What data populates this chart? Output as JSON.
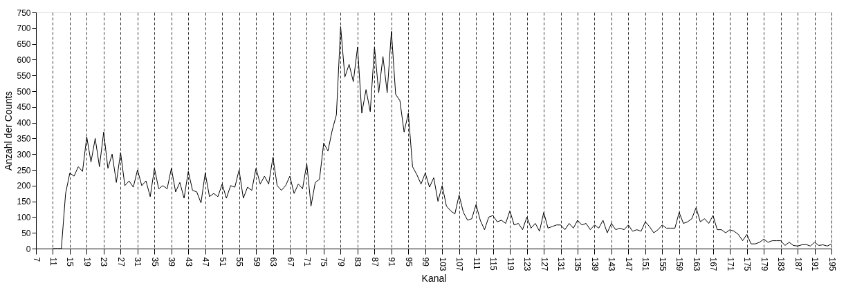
{
  "chart_data": {
    "type": "line",
    "xlabel": "Kanal",
    "ylabel": "Anzahl der Counts",
    "color": "#000000",
    "grid": "x",
    "xlim": [
      7,
      195
    ],
    "xticks": [
      7,
      11,
      15,
      19,
      23,
      27,
      31,
      35,
      39,
      43,
      47,
      51,
      55,
      59,
      63,
      67,
      71,
      75,
      79,
      83,
      87,
      91,
      95,
      99,
      103,
      107,
      111,
      115,
      119,
      123,
      127,
      131,
      135,
      139,
      143,
      147,
      151,
      155,
      159,
      163,
      167,
      171,
      175,
      179,
      183,
      187,
      191,
      195
    ],
    "ylim": [
      0,
      750
    ],
    "yticks": [
      0,
      50,
      100,
      150,
      200,
      250,
      300,
      350,
      400,
      450,
      500,
      550,
      600,
      650,
      700,
      750
    ],
    "x": [
      11,
      12,
      13,
      14,
      15,
      16,
      17,
      18,
      19,
      20,
      21,
      22,
      23,
      24,
      25,
      26,
      27,
      28,
      29,
      30,
      31,
      32,
      33,
      34,
      35,
      36,
      37,
      38,
      39,
      40,
      41,
      42,
      43,
      44,
      45,
      46,
      47,
      48,
      49,
      50,
      51,
      52,
      53,
      54,
      55,
      56,
      57,
      58,
      59,
      60,
      61,
      62,
      63,
      64,
      65,
      66,
      67,
      68,
      69,
      70,
      71,
      72,
      73,
      74,
      75,
      76,
      77,
      78,
      79,
      80,
      81,
      82,
      83,
      84,
      85,
      86,
      87,
      88,
      89,
      90,
      91,
      92,
      93,
      94,
      95,
      96,
      97,
      98,
      99,
      100,
      101,
      102,
      103,
      104,
      105,
      106,
      107,
      108,
      109,
      110,
      111,
      112,
      113,
      114,
      115,
      116,
      117,
      118,
      119,
      120,
      121,
      122,
      123,
      124,
      125,
      126,
      127,
      128,
      129,
      130,
      131,
      132,
      133,
      134,
      135,
      136,
      137,
      138,
      139,
      140,
      141,
      142,
      143,
      144,
      145,
      146,
      147,
      148,
      149,
      150,
      151,
      152,
      153,
      154,
      155,
      156,
      157,
      158,
      159,
      160,
      161,
      162,
      163,
      164,
      165,
      166,
      167,
      168,
      169,
      170,
      171,
      172,
      173,
      174,
      175,
      176,
      177,
      178,
      179,
      180,
      181,
      182,
      183,
      184,
      185,
      186,
      187,
      188,
      189,
      190,
      191,
      192,
      193,
      194,
      195
    ],
    "values": [
      0,
      0,
      0,
      175,
      240,
      230,
      260,
      245,
      355,
      275,
      350,
      260,
      370,
      255,
      300,
      210,
      305,
      200,
      215,
      195,
      250,
      200,
      215,
      165,
      255,
      190,
      200,
      190,
      255,
      180,
      210,
      160,
      245,
      185,
      180,
      145,
      240,
      165,
      175,
      165,
      205,
      160,
      200,
      195,
      250,
      160,
      195,
      185,
      255,
      205,
      230,
      205,
      290,
      200,
      185,
      200,
      230,
      175,
      205,
      190,
      270,
      135,
      210,
      220,
      335,
      310,
      375,
      425,
      705,
      545,
      585,
      530,
      640,
      430,
      505,
      435,
      640,
      495,
      610,
      495,
      690,
      490,
      470,
      370,
      430,
      260,
      235,
      205,
      240,
      195,
      225,
      150,
      200,
      135,
      120,
      110,
      170,
      115,
      90,
      95,
      140,
      90,
      60,
      100,
      105,
      85,
      90,
      80,
      120,
      75,
      80,
      60,
      100,
      65,
      80,
      55,
      115,
      65,
      70,
      75,
      75,
      60,
      80,
      65,
      90,
      75,
      80,
      60,
      75,
      65,
      90,
      50,
      80,
      60,
      65,
      60,
      75,
      55,
      60,
      55,
      85,
      70,
      50,
      60,
      75,
      65,
      65,
      65,
      115,
      80,
      85,
      95,
      130,
      85,
      95,
      80,
      105,
      60,
      60,
      50,
      60,
      55,
      45,
      25,
      45,
      15,
      15,
      20,
      30,
      20,
      25,
      25,
      25,
      10,
      20,
      10,
      8,
      12,
      13,
      8,
      20,
      10,
      12,
      8,
      15
    ]
  }
}
